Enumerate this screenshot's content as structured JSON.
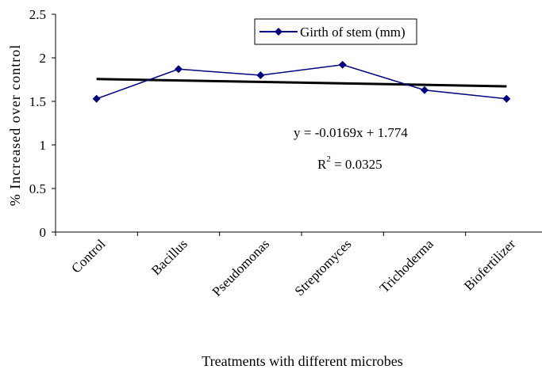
{
  "chart_data": {
    "type": "line",
    "categories": [
      "Control",
      "Bacillus",
      "Pseudomonas",
      "Streptomyces",
      "Trichoderma",
      "Biofertilizer"
    ],
    "series": [
      {
        "name": "Girth of stem (mm)",
        "values": [
          1.53,
          1.87,
          1.8,
          1.92,
          1.63,
          1.53
        ],
        "color": "#000080",
        "marker": "diamond"
      }
    ],
    "trendline": {
      "type": "linear",
      "slope": -0.0169,
      "intercept": 1.774,
      "color": "#000000"
    },
    "equation": "y = -0.0169x + 1.774",
    "r_squared_prefix": "R",
    "r_squared_sup": "2",
    "r_squared_suffix": " = 0.0325",
    "xlabel": "Treatments with different microbes",
    "ylabel": "% Increased over control",
    "ylim": [
      0,
      2.5
    ],
    "yticks": [
      "0",
      "0.5",
      "1",
      "1.5",
      "2",
      "2.5"
    ],
    "grid": false,
    "legend_position": "top-right"
  }
}
